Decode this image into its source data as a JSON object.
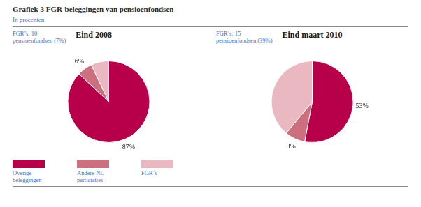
{
  "title": "Grafiek 3  FGR-beleggingen van pensioenfondsen",
  "subtitle": "In procenten",
  "chart_data": [
    {
      "type": "pie",
      "title": "Eind 2008",
      "annotation": "FGR’s: 10\npensioenfondsen (7%)",
      "categories": [
        "Overige\nbeleggingen",
        "Andere NL\nparticiaties",
        "FGR’s"
      ],
      "values": [
        87,
        6,
        7
      ],
      "value_labels": [
        "87%",
        "6%",
        null
      ],
      "data_labels": true,
      "colors": [
        "#B8004A",
        "#CC7080",
        "#EAB8C0"
      ],
      "legend": "bottom"
    },
    {
      "type": "pie",
      "title": "Eind maart 2010",
      "annotation": "FGR’s: 15\npensioenfondsen (39%)",
      "categories": [
        "Overige\nbeleggingen",
        "Andere NL\nparticiaties",
        "FGR’s"
      ],
      "values": [
        53,
        8,
        39
      ],
      "value_labels": [
        "53%",
        "8%",
        null
      ],
      "data_labels": true,
      "colors": [
        "#B8004A",
        "#CC7080",
        "#EAB8C0"
      ]
    }
  ]
}
